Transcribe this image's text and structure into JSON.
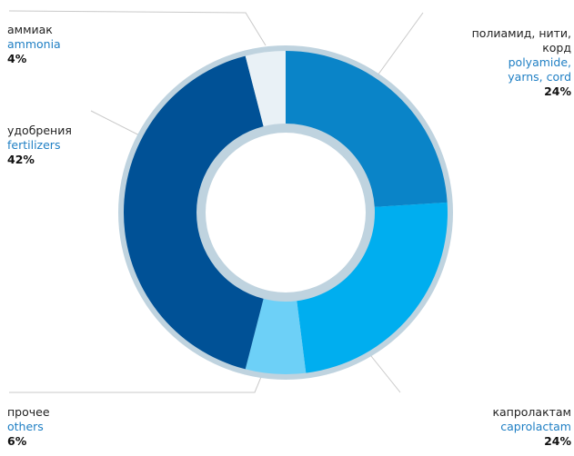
{
  "chart_data": {
    "type": "pie",
    "style": "donut",
    "legend": "none",
    "slices": [
      {
        "label_ru": "полиамид, нити, корд",
        "label_en": "polyamide, yarns, cord",
        "value": 24,
        "value_label": "24%",
        "color": "#0a84c8"
      },
      {
        "label_ru": "капролактам",
        "label_en": "caprolactam",
        "value": 24,
        "value_label": "24%",
        "color": "#00aeef"
      },
      {
        "label_ru": "прочее",
        "label_en": "others",
        "value": 6,
        "value_label": "6%",
        "color": "#6dd0f7"
      },
      {
        "label_ru": "удобрения",
        "label_en": "fertilizers",
        "value": 42,
        "value_label": "42%",
        "color": "#005196"
      },
      {
        "label_ru": "аммиак",
        "label_en": "ammonia",
        "value": 4,
        "value_label": "4%",
        "color": "#e9f1f6"
      }
    ]
  }
}
